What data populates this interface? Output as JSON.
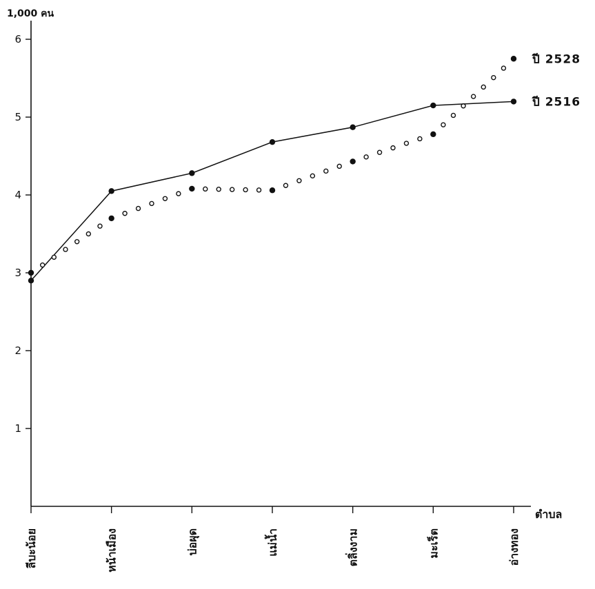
{
  "chart_data": {
    "type": "line",
    "ylabel": "1,000 คน",
    "xlabel": "ตำบล",
    "ylim": [
      0,
      6
    ],
    "yticks": [
      1,
      2,
      3,
      4,
      5,
      6
    ],
    "categories": [
      "ลีบะน้อย",
      "หน้าเมือง",
      "บ่อผุด",
      "แม่น้ำ",
      "ตลิ่งงาม",
      "มะเร็ต",
      "อ่างทอง"
    ],
    "grid": false,
    "legend_placement": "right",
    "series": [
      {
        "name": "ปี 2516",
        "style": "solid-line-filled-markers",
        "color": "#111111",
        "values": [
          2.9,
          4.05,
          4.28,
          4.68,
          4.87,
          5.15,
          5.2
        ]
      },
      {
        "name": "ปี 2528",
        "style": "dotted-hollow-circles",
        "color": "#111111",
        "values": [
          3.0,
          3.7,
          4.08,
          4.06,
          4.43,
          4.78,
          5.75
        ]
      }
    ]
  }
}
